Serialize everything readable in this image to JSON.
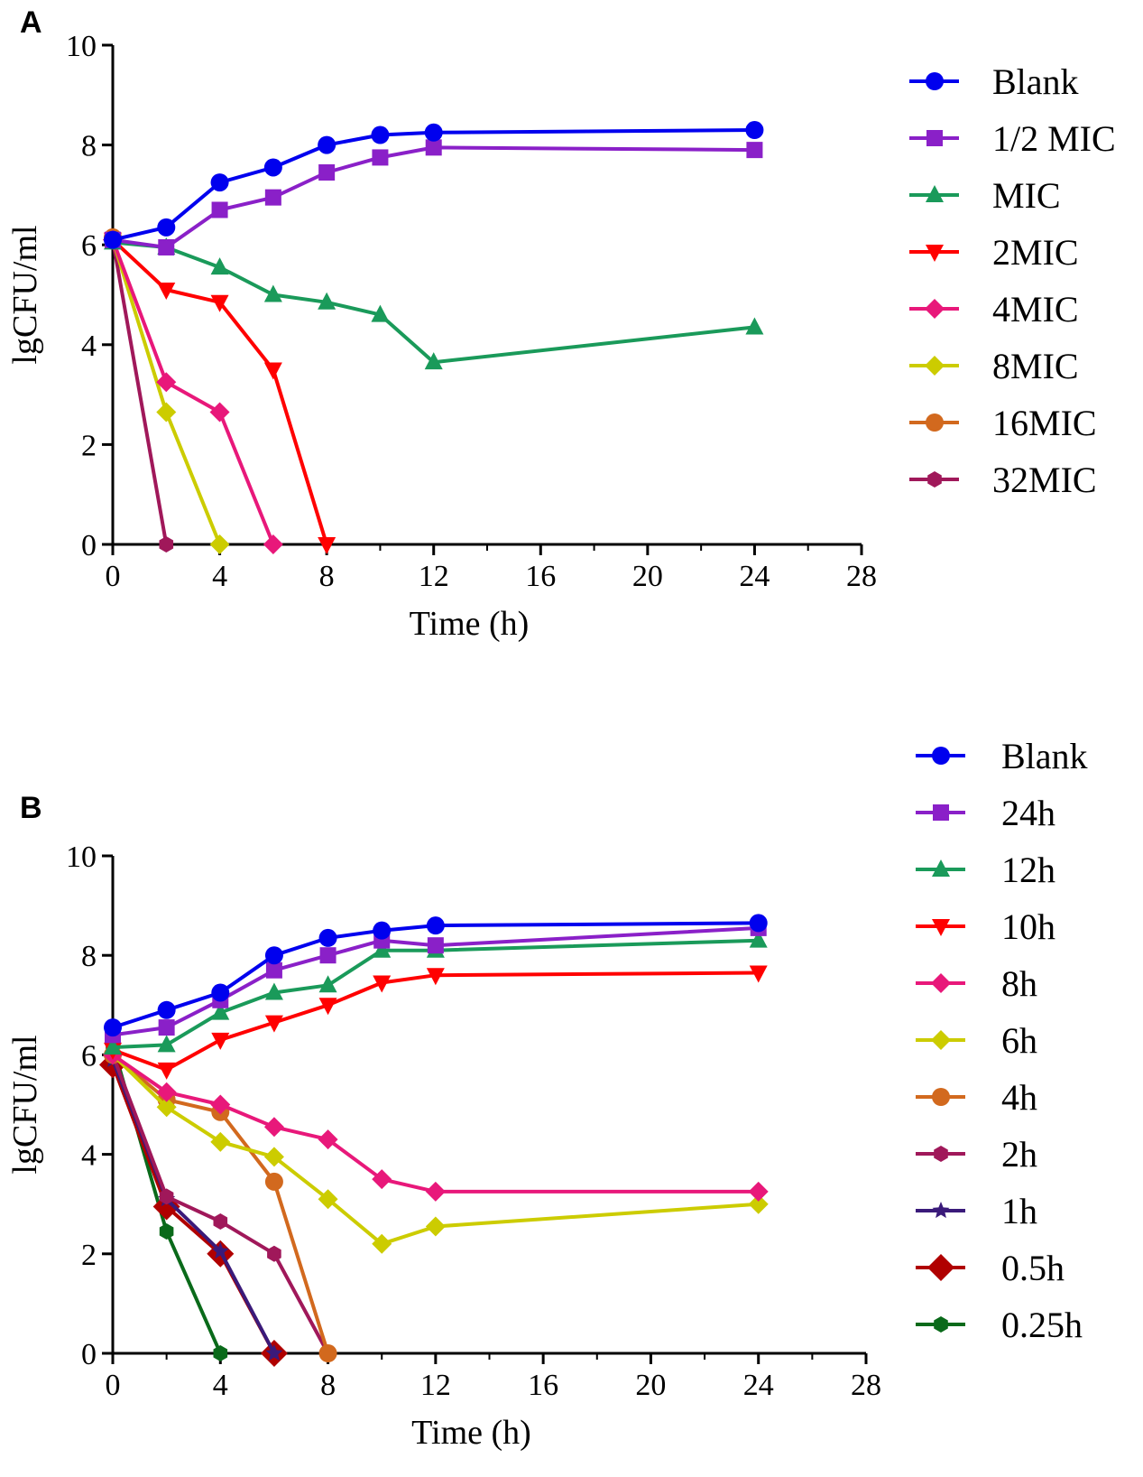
{
  "chart_data": [
    {
      "panel": "A",
      "type": "line",
      "xlabel": "Time (h)",
      "ylabel": "lgCFU/ml",
      "xlim": [
        0,
        28
      ],
      "ylim": [
        0,
        10
      ],
      "xticks": [
        0,
        4,
        8,
        12,
        16,
        20,
        24,
        28
      ],
      "yticks": [
        0,
        2,
        4,
        6,
        8,
        10
      ],
      "legend_position": "right",
      "series": [
        {
          "name": "Blank",
          "color": "#0000ee",
          "marker": "circle",
          "x": [
            0,
            2,
            4,
            6,
            8,
            10,
            12,
            24
          ],
          "y": [
            6.1,
            6.35,
            7.25,
            7.55,
            8.0,
            8.2,
            8.25,
            8.3
          ]
        },
        {
          "name": "1/2 MIC",
          "color": "#8a20c8",
          "marker": "square",
          "x": [
            0,
            2,
            4,
            6,
            8,
            10,
            12,
            24
          ],
          "y": [
            6.1,
            5.95,
            6.7,
            6.95,
            7.45,
            7.75,
            7.95,
            7.9
          ]
        },
        {
          "name": "MIC",
          "color": "#1a9a5a",
          "marker": "triangle-up",
          "x": [
            0,
            2,
            4,
            6,
            8,
            10,
            12,
            24
          ],
          "y": [
            6.05,
            5.95,
            5.55,
            5.0,
            4.85,
            4.6,
            3.65,
            4.35
          ]
        },
        {
          "name": "2MIC",
          "color": "#ff0000",
          "marker": "triangle-down",
          "x": [
            0,
            2,
            4,
            6,
            8
          ],
          "y": [
            6.1,
            5.1,
            4.85,
            3.5,
            0
          ]
        },
        {
          "name": "4MIC",
          "color": "#e8187a",
          "marker": "diamond",
          "x": [
            0,
            2,
            4,
            6
          ],
          "y": [
            6.1,
            3.25,
            2.65,
            0
          ]
        },
        {
          "name": "8MIC",
          "color": "#cccc00",
          "marker": "diamond",
          "x": [
            0,
            2,
            4
          ],
          "y": [
            6.1,
            2.65,
            0
          ]
        },
        {
          "name": "16MIC",
          "color": "#d2691e",
          "marker": "circle",
          "x": [
            0
          ],
          "y": [
            6.15
          ]
        },
        {
          "name": "32MIC",
          "color": "#a0185a",
          "marker": "hexagon",
          "x": [
            0,
            2
          ],
          "y": [
            6.1,
            0
          ]
        }
      ]
    },
    {
      "panel": "B",
      "type": "line",
      "xlabel": "Time (h)",
      "ylabel": "lgCFU/ml",
      "xlim": [
        0,
        28
      ],
      "ylim": [
        0,
        10
      ],
      "xticks": [
        0,
        4,
        8,
        12,
        16,
        20,
        24,
        28
      ],
      "yticks": [
        0,
        2,
        4,
        6,
        8,
        10
      ],
      "legend_position": "right",
      "series": [
        {
          "name": "Blank",
          "color": "#0000ee",
          "marker": "circle",
          "x": [
            0,
            2,
            4,
            6,
            8,
            10,
            12,
            24
          ],
          "y": [
            6.55,
            6.9,
            7.25,
            8.0,
            8.35,
            8.5,
            8.6,
            8.65
          ]
        },
        {
          "name": "24h",
          "color": "#8a20c8",
          "marker": "square",
          "x": [
            0,
            2,
            4,
            6,
            8,
            10,
            12,
            24
          ],
          "y": [
            6.4,
            6.55,
            7.1,
            7.7,
            8.0,
            8.3,
            8.2,
            8.55
          ]
        },
        {
          "name": "12h",
          "color": "#1a9a5a",
          "marker": "triangle-up",
          "x": [
            0,
            2,
            4,
            6,
            8,
            10,
            12,
            24
          ],
          "y": [
            6.15,
            6.2,
            6.85,
            7.25,
            7.4,
            8.1,
            8.1,
            8.3
          ]
        },
        {
          "name": "10h",
          "color": "#ff0000",
          "marker": "triangle-down",
          "x": [
            0,
            2,
            4,
            6,
            8,
            10,
            12,
            24
          ],
          "y": [
            6.1,
            5.7,
            6.3,
            6.65,
            7.0,
            7.45,
            7.6,
            7.65
          ]
        },
        {
          "name": "8h",
          "color": "#e8187a",
          "marker": "diamond",
          "x": [
            0,
            2,
            4,
            6,
            8,
            10,
            12,
            24
          ],
          "y": [
            6.0,
            5.25,
            5.0,
            4.55,
            4.3,
            3.5,
            3.25,
            3.25
          ]
        },
        {
          "name": "6h",
          "color": "#cccc00",
          "marker": "diamond",
          "x": [
            0,
            2,
            4,
            6,
            8,
            10,
            12,
            24
          ],
          "y": [
            6.0,
            4.95,
            4.25,
            3.95,
            3.1,
            2.2,
            2.55,
            3.0
          ]
        },
        {
          "name": "4h",
          "color": "#d2691e",
          "marker": "circle",
          "x": [
            0,
            2,
            4,
            6,
            8
          ],
          "y": [
            6.0,
            5.1,
            4.85,
            3.45,
            0
          ]
        },
        {
          "name": "2h",
          "color": "#a0185a",
          "marker": "hexagon",
          "x": [
            0,
            2,
            4,
            6,
            8
          ],
          "y": [
            6.0,
            3.15,
            2.65,
            2.0,
            0
          ]
        },
        {
          "name": "1h",
          "color": "#3a1a7a",
          "marker": "star",
          "x": [
            0,
            2,
            4,
            6
          ],
          "y": [
            5.9,
            3.1,
            2.05,
            0
          ]
        },
        {
          "name": "0.5h",
          "color": "#b00000",
          "marker": "diamond-large",
          "x": [
            0,
            2,
            4,
            6
          ],
          "y": [
            5.8,
            2.95,
            2.0,
            0
          ]
        },
        {
          "name": "0.25h",
          "color": "#0a6a1a",
          "marker": "hexagon",
          "x": [
            0,
            2,
            4
          ],
          "y": [
            6.2,
            2.45,
            0
          ]
        }
      ]
    }
  ]
}
